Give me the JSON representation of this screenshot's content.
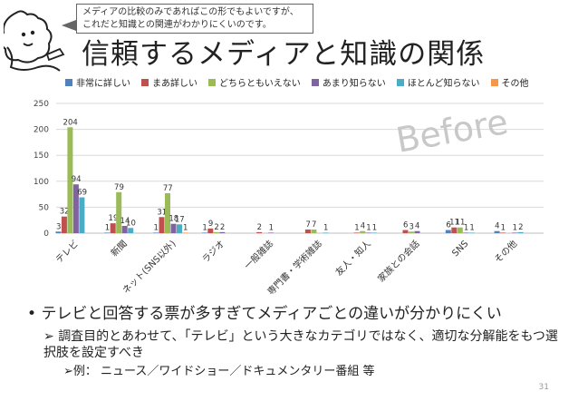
{
  "callout": {
    "line1": "メディアの比較のみであればこの形でもよいですが、",
    "line2": "これだと知識との関連がわかりにくいのです。"
  },
  "title": "信頼するメディアと知識の関係",
  "watermark": "Before",
  "page_number": "31",
  "bullets": {
    "level1": "テレビと回答する票が多すぎてメディアごとの違いが分かりにくい",
    "level2": "調査目的とあわせて、「テレビ」という大きなカテゴリではなく、適切な分解能をもつ選択肢を設定すべき",
    "level3": "例：  ニュース／ワイドショー／ドキュメンタリー番組  等"
  },
  "colors": [
    "#4f81bd",
    "#c0504d",
    "#9bbb59",
    "#8064a2",
    "#4bacc6",
    "#f79646"
  ],
  "chart_data": {
    "type": "bar",
    "categories": [
      "テレビ",
      "新聞",
      "ネット(SNS以外)",
      "ラジオ",
      "一般雑誌",
      "専門書・学術雑誌",
      "友人・知人",
      "家族との会話",
      "SNS",
      "その他"
    ],
    "series": [
      {
        "name": "非常に詳しい",
        "values": [
          3,
          1,
          1,
          1,
          0,
          0,
          0,
          0,
          6,
          4
        ]
      },
      {
        "name": "まあ詳しい",
        "values": [
          32,
          19,
          31,
          9,
          2,
          7,
          1,
          6,
          11,
          1
        ]
      },
      {
        "name": "どちらともいえない",
        "values": [
          204,
          79,
          77,
          2,
          0,
          7,
          4,
          3,
          11,
          0
        ]
      },
      {
        "name": "あまり知らない",
        "values": [
          94,
          14,
          18,
          2,
          1,
          0,
          1,
          4,
          1,
          1
        ]
      },
      {
        "name": "ほとんど知らない",
        "values": [
          69,
          10,
          17,
          0,
          0,
          1,
          1,
          0,
          1,
          2
        ]
      },
      {
        "name": "その他",
        "values": [
          0,
          0,
          1,
          0,
          0,
          0,
          0,
          0,
          0,
          0
        ]
      }
    ],
    "ylim": [
      0,
      250
    ],
    "yticks": [
      0,
      50,
      100,
      150,
      200,
      250
    ],
    "grid": true,
    "legend_position": "top"
  }
}
